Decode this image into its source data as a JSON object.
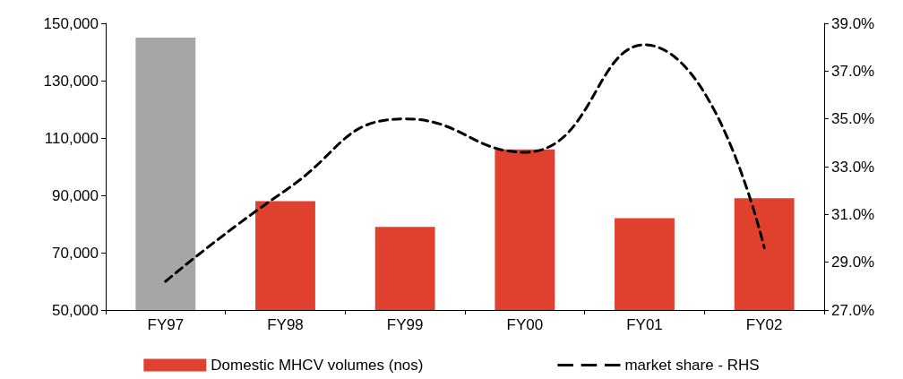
{
  "chart_data": {
    "type": "bar",
    "categories": [
      "FY97",
      "FY98",
      "FY99",
      "FY00",
      "FY01",
      "FY02"
    ],
    "series": [
      {
        "name": "Domestic MHCV volumes (nos)",
        "color": "#e0412f",
        "colors": [
          "#a6a6a6",
          "#e0412f",
          "#e0412f",
          "#e0412f",
          "#e0412f",
          "#e0412f"
        ],
        "values": [
          145000,
          88000,
          79000,
          106000,
          82000,
          89000
        ]
      },
      {
        "name": "market share - RHS",
        "type": "line",
        "axis": "y2",
        "color": "#000000",
        "line_style": "dashed",
        "values": [
          28.2,
          32.0,
          35.0,
          33.6,
          38.1,
          29.6
        ]
      }
    ],
    "ylim": [
      50000,
      150000
    ],
    "yticks": [
      {
        "value": 50000,
        "label": "50,000"
      },
      {
        "value": 70000,
        "label": "70,000"
      },
      {
        "value": 90000,
        "label": "90,000"
      },
      {
        "value": 110000,
        "label": "110,000"
      },
      {
        "value": 130000,
        "label": "130,000"
      },
      {
        "value": 150000,
        "label": "150,000"
      }
    ],
    "y2lim": [
      27,
      39
    ],
    "y2ticks": [
      {
        "value": 27,
        "label": "27.0%"
      },
      {
        "value": 29,
        "label": "29.0%"
      },
      {
        "value": 31,
        "label": "31.0%"
      },
      {
        "value": 33,
        "label": "33.0%"
      },
      {
        "value": 35,
        "label": "35.0%"
      },
      {
        "value": 37,
        "label": "37.0%"
      },
      {
        "value": 39,
        "label": "39.0%"
      }
    ],
    "grid": false,
    "legend": "bottom",
    "marker": "none"
  }
}
